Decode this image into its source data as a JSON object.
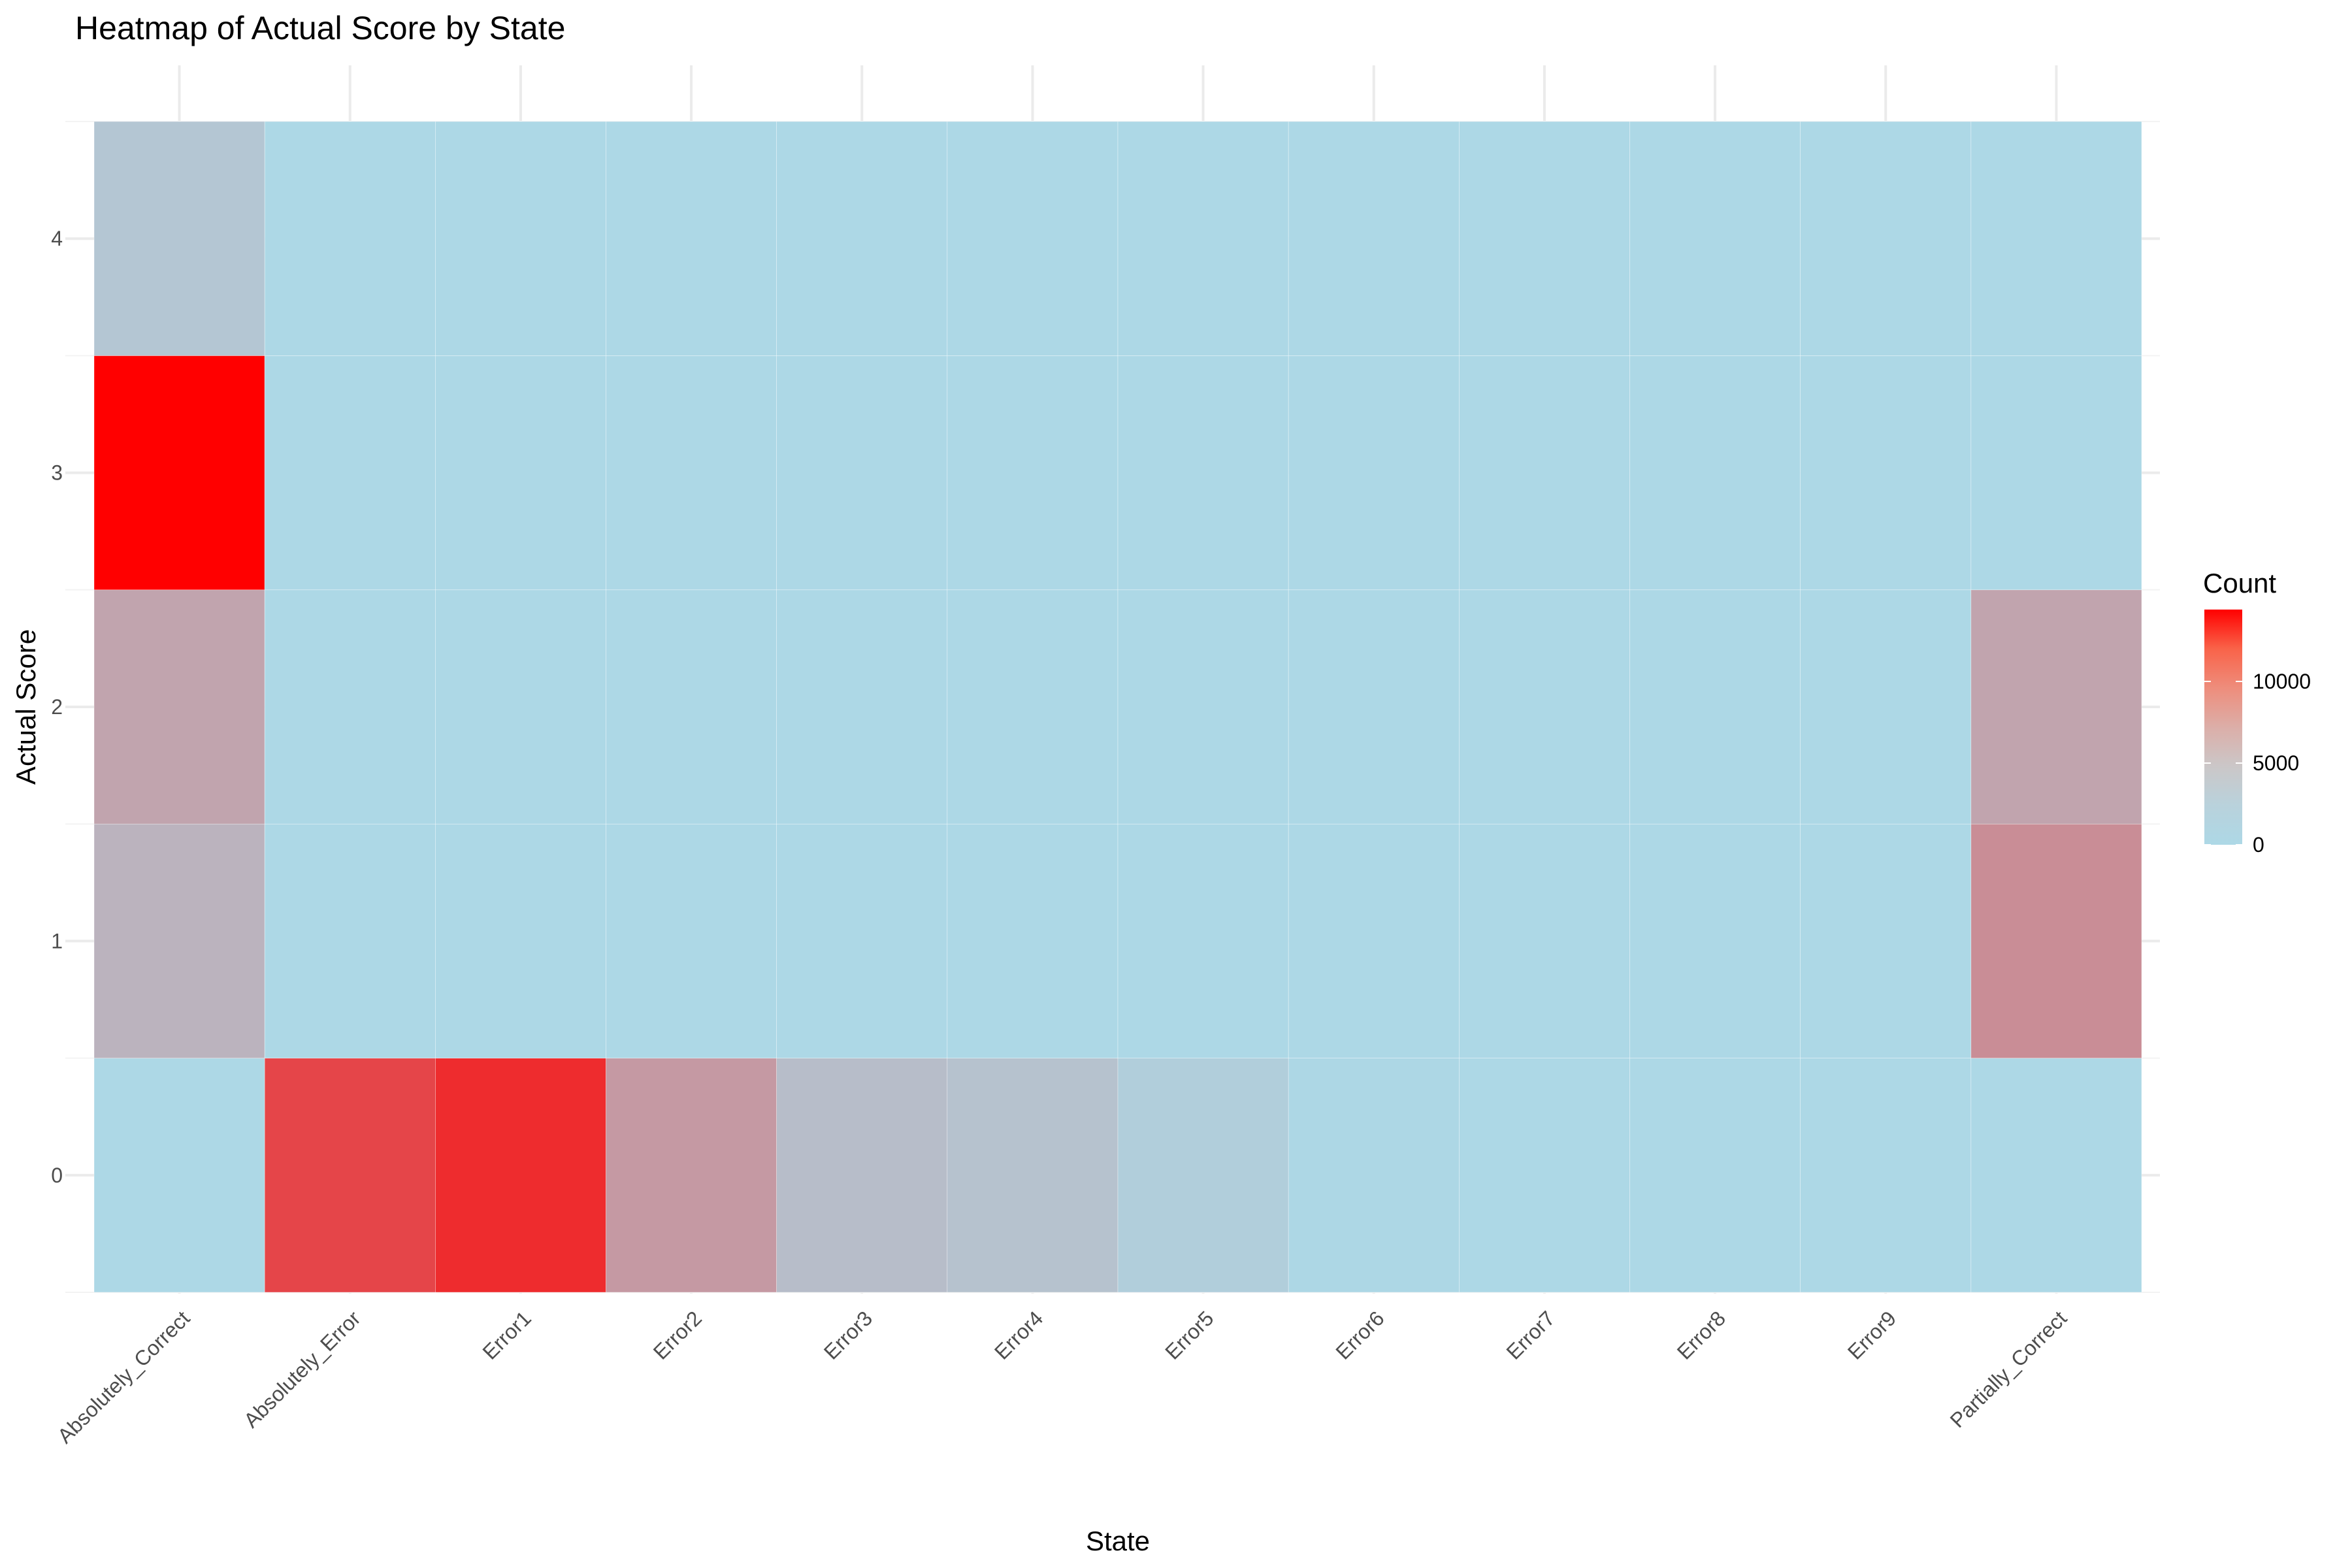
{
  "chart_data": {
    "type": "heatmap",
    "title": "Heatmap of Actual Score by State",
    "xlabel": "State",
    "ylabel": "Actual Score",
    "x_categories": [
      "Absolutely_Correct",
      "Absolutely_Error",
      "Error1",
      "Error2",
      "Error3",
      "Error4",
      "Error5",
      "Error6",
      "Error7",
      "Error8",
      "Error9",
      "Partially_Correct"
    ],
    "y_categories": [
      "0",
      "1",
      "2",
      "3",
      "4"
    ],
    "values": [
      [
        0,
        2500,
        3500,
        14400,
        1200
      ],
      [
        9800,
        0,
        0,
        0,
        0
      ],
      [
        11500,
        0,
        0,
        0,
        0
      ],
      [
        4200,
        0,
        0,
        0,
        0
      ],
      [
        1800,
        0,
        0,
        0,
        0
      ],
      [
        1500,
        0,
        0,
        0,
        0
      ],
      [
        700,
        0,
        0,
        0,
        0
      ],
      [
        50,
        0,
        0,
        0,
        0
      ],
      [
        0,
        0,
        0,
        0,
        0
      ],
      [
        0,
        0,
        0,
        0,
        0
      ],
      [
        0,
        0,
        0,
        0,
        0
      ],
      [
        0,
        5000,
        3500,
        0,
        0
      ]
    ],
    "legend": {
      "title": "Count",
      "ticks": [
        0,
        5000,
        10000
      ],
      "tick_labels": [
        "0",
        "5000",
        "10000"
      ],
      "min": 0,
      "max": 14400,
      "low_color": "#add8e6",
      "high_color": "#ff0000",
      "placement": "right"
    },
    "grid": true
  }
}
